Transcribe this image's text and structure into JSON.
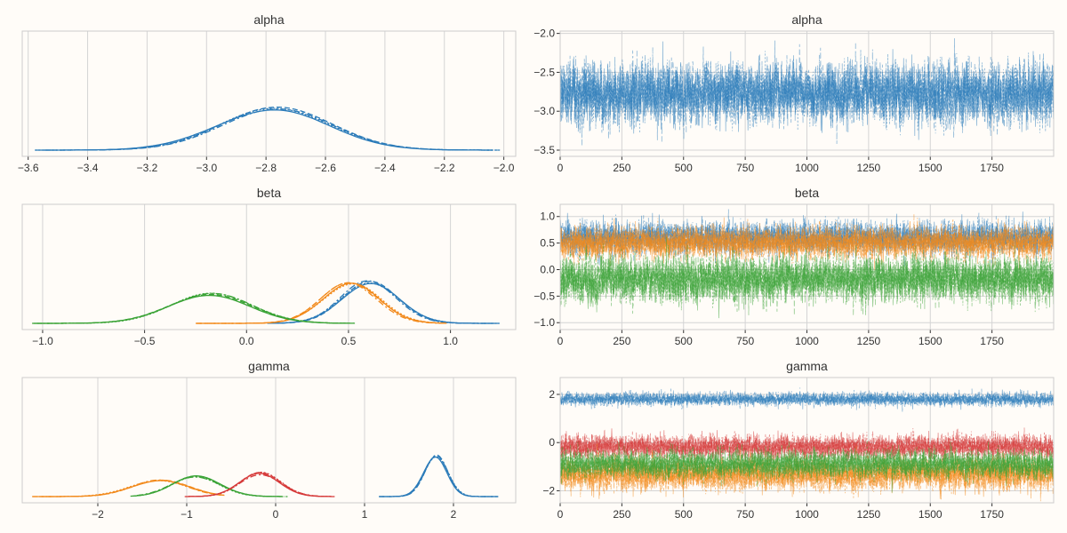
{
  "colors": {
    "background": "#fffcf8",
    "blue": "#2b7bb9",
    "orange": "#f28a1c",
    "green": "#3aa336",
    "red": "#d63a3a",
    "frame": "#cccccc",
    "grid": "#d4d4d4"
  },
  "chart_data": [
    {
      "type": "line",
      "subtype": "density",
      "title": "alpha",
      "xlim": [
        -3.62,
        -1.96
      ],
      "x_ticks": [
        -3.6,
        -3.4,
        -3.2,
        -3.0,
        -2.8,
        -2.6,
        -2.4,
        -2.2,
        -2.0
      ],
      "x_tick_labels": [
        "−3.6",
        "−3.4",
        "−3.2",
        "−3.0",
        "−2.8",
        "−2.6",
        "−2.4",
        "−2.2",
        "−2.0"
      ],
      "show_y_ticks": false,
      "grid": "vertical",
      "series": [
        {
          "color": "blue",
          "mean": -2.77,
          "sd": 0.19,
          "chains": 4,
          "range": [
            -3.55,
            -2.03
          ]
        }
      ]
    },
    {
      "type": "line",
      "subtype": "trace",
      "title": "alpha",
      "xlim": [
        0,
        2000
      ],
      "ylim": [
        -3.58,
        -1.97
      ],
      "x_ticks": [
        0,
        250,
        500,
        750,
        1000,
        1250,
        1500,
        1750
      ],
      "x_tick_labels": [
        "0",
        "250",
        "500",
        "750",
        "1000",
        "1250",
        "1500",
        "1750"
      ],
      "y_ticks": [
        -3.5,
        -3.0,
        -2.5,
        -2.0
      ],
      "y_tick_labels": [
        "−3.5",
        "−3.0",
        "−2.5",
        "−2.0"
      ],
      "draws": 2000,
      "grid": "both",
      "series": [
        {
          "color": "blue",
          "mean": -2.77,
          "sd": 0.19,
          "chains": 4
        }
      ]
    },
    {
      "type": "line",
      "subtype": "density",
      "title": "beta",
      "xlim": [
        -1.1,
        1.32
      ],
      "x_ticks": [
        -1.0,
        -0.5,
        0.0,
        0.5,
        1.0
      ],
      "x_tick_labels": [
        "−1.0",
        "−0.5",
        "0.0",
        "0.5",
        "1.0"
      ],
      "show_y_ticks": false,
      "grid": "vertical",
      "series": [
        {
          "color": "blue",
          "mean": 0.6,
          "sd": 0.14,
          "chains": 4,
          "range": [
            0.12,
            1.22
          ]
        },
        {
          "color": "orange",
          "mean": 0.51,
          "sd": 0.14,
          "chains": 4,
          "range": [
            -0.23,
            0.98
          ]
        },
        {
          "color": "green",
          "mean": -0.18,
          "sd": 0.2,
          "chains": 4,
          "range": [
            -1.03,
            0.52
          ]
        }
      ]
    },
    {
      "type": "line",
      "subtype": "trace",
      "title": "beta",
      "xlim": [
        0,
        2000
      ],
      "ylim": [
        -1.13,
        1.23
      ],
      "x_ticks": [
        0,
        250,
        500,
        750,
        1000,
        1250,
        1500,
        1750
      ],
      "x_tick_labels": [
        "0",
        "250",
        "500",
        "750",
        "1000",
        "1250",
        "1500",
        "1750"
      ],
      "y_ticks": [
        -1.0,
        -0.5,
        0.0,
        0.5,
        1.0
      ],
      "y_tick_labels": [
        "−1.0",
        "−0.5",
        "0.0",
        "0.5",
        "1.0"
      ],
      "draws": 2000,
      "grid": "both",
      "series": [
        {
          "color": "blue",
          "mean": 0.6,
          "sd": 0.14,
          "chains": 4
        },
        {
          "color": "orange",
          "mean": 0.51,
          "sd": 0.14,
          "chains": 4
        },
        {
          "color": "green",
          "mean": -0.18,
          "sd": 0.2,
          "chains": 4
        }
      ]
    },
    {
      "type": "line",
      "subtype": "density",
      "title": "gamma",
      "xlim": [
        -2.85,
        2.7
      ],
      "x_ticks": [
        -2,
        -1,
        0,
        1,
        2
      ],
      "x_tick_labels": [
        "−2",
        "−1",
        "0",
        "1",
        "2"
      ],
      "show_y_ticks": false,
      "grid": "vertical",
      "series": [
        {
          "color": "blue",
          "mean": 1.8,
          "sd": 0.13,
          "chains": 4,
          "range": [
            1.18,
            2.5
          ]
        },
        {
          "color": "orange",
          "mean": -1.3,
          "sd": 0.32,
          "chains": 4,
          "range": [
            -2.7,
            -0.62
          ]
        },
        {
          "color": "green",
          "mean": -0.9,
          "sd": 0.27,
          "chains": 4,
          "range": [
            -1.6,
            0.1
          ]
        },
        {
          "color": "red",
          "mean": -0.17,
          "sd": 0.23,
          "chains": 4,
          "range": [
            -1.0,
            0.65
          ]
        }
      ]
    },
    {
      "type": "line",
      "subtype": "trace",
      "title": "gamma",
      "xlim": [
        0,
        2000
      ],
      "ylim": [
        -2.5,
        2.7
      ],
      "x_ticks": [
        0,
        250,
        500,
        750,
        1000,
        1250,
        1500,
        1750
      ],
      "x_tick_labels": [
        "0",
        "250",
        "500",
        "750",
        "1000",
        "1250",
        "1500",
        "1750"
      ],
      "y_ticks": [
        -2,
        0,
        2
      ],
      "y_tick_labels": [
        "−2",
        "0",
        "2"
      ],
      "draws": 2000,
      "grid": "both",
      "series": [
        {
          "color": "blue",
          "mean": 1.8,
          "sd": 0.13,
          "chains": 4
        },
        {
          "color": "red",
          "mean": -0.17,
          "sd": 0.23,
          "chains": 4
        },
        {
          "color": "orange",
          "mean": -1.3,
          "sd": 0.32,
          "chains": 4
        },
        {
          "color": "green",
          "mean": -0.9,
          "sd": 0.27,
          "chains": 4
        }
      ]
    }
  ]
}
